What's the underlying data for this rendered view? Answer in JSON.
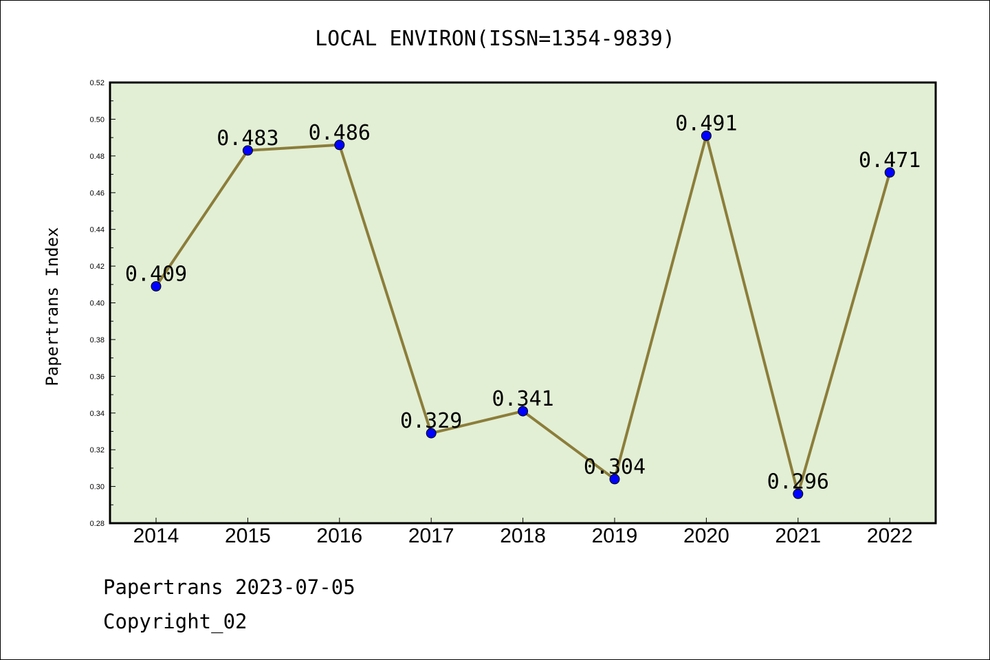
{
  "chart_data": {
    "type": "line",
    "title": "LOCAL ENVIRON(ISSN=1354-9839)",
    "xlabel": "",
    "ylabel": "Papertrans Index",
    "categories": [
      "2014",
      "2015",
      "2016",
      "2017",
      "2018",
      "2019",
      "2020",
      "2021",
      "2022"
    ],
    "series": [
      {
        "values": [
          0.409,
          0.483,
          0.486,
          0.329,
          0.341,
          0.304,
          0.491,
          0.296,
          0.471
        ]
      }
    ],
    "data_labels": [
      "0.409",
      "0.483",
      "0.486",
      "0.329",
      "0.341",
      "0.304",
      "0.491",
      "0.296",
      "0.471"
    ],
    "ylim": [
      0.28,
      0.52
    ],
    "yticks": [
      "0.28",
      "0.30",
      "0.32",
      "0.34",
      "0.36",
      "0.38",
      "0.40",
      "0.42",
      "0.44",
      "0.46",
      "0.48",
      "0.50",
      "0.52"
    ],
    "grid": false,
    "colors": {
      "plot_background": "#e2efd5",
      "line": "#8b7d3a",
      "marker": "#0000ff"
    }
  },
  "footer": {
    "line1": "Papertrans 2023-07-05",
    "line2": "Copyright_02"
  }
}
